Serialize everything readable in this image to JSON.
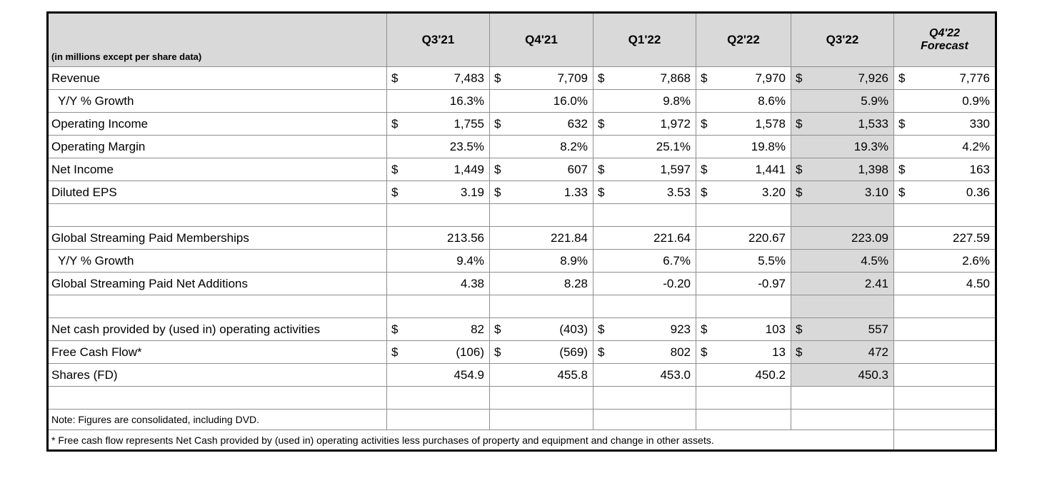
{
  "table": {
    "unit_label": "(in millions except per share data)",
    "currency_symbol": "$",
    "highlight_column_index": 4,
    "column_headers": [
      {
        "label": "Q3'21"
      },
      {
        "label": "Q4'21"
      },
      {
        "label": "Q1'22"
      },
      {
        "label": "Q2'22"
      },
      {
        "label": "Q3'22",
        "highlighted": true
      },
      {
        "label": "Q4'22",
        "sublabel": "Forecast",
        "italic": true
      }
    ],
    "rows": [
      {
        "kind": "currency",
        "label": "Revenue",
        "values": [
          "7,483",
          "7,709",
          "7,868",
          "7,970",
          "7,926",
          "7,776"
        ],
        "shaded": true
      },
      {
        "kind": "plain",
        "label": "Y/Y % Growth",
        "indent": true,
        "values": [
          "16.3%",
          "16.0%",
          "9.8%",
          "8.6%",
          "5.9%",
          "0.9%"
        ],
        "shaded": true
      },
      {
        "kind": "currency",
        "label": "Operating Income",
        "values": [
          "1,755",
          "632",
          "1,972",
          "1,578",
          "1,533",
          "330"
        ],
        "shaded": true
      },
      {
        "kind": "plain",
        "label": "Operating Margin",
        "values": [
          "23.5%",
          "8.2%",
          "25.1%",
          "19.8%",
          "19.3%",
          "4.2%"
        ],
        "shaded": true
      },
      {
        "kind": "currency",
        "label": "Net Income",
        "values": [
          "1,449",
          "607",
          "1,597",
          "1,441",
          "1,398",
          "163"
        ],
        "shaded": true
      },
      {
        "kind": "currency",
        "label": "Diluted EPS",
        "values": [
          "3.19",
          "1.33",
          "3.53",
          "3.20",
          "3.10",
          "0.36"
        ],
        "shaded": true
      },
      {
        "kind": "blank",
        "shaded": true
      },
      {
        "kind": "plain",
        "label": "Global Streaming Paid Memberships",
        "values": [
          "213.56",
          "221.84",
          "221.64",
          "220.67",
          "223.09",
          "227.59"
        ],
        "shaded": true
      },
      {
        "kind": "plain",
        "label": "Y/Y % Growth",
        "indent": true,
        "values": [
          "9.4%",
          "8.9%",
          "6.7%",
          "5.5%",
          "4.5%",
          "2.6%"
        ],
        "shaded": true
      },
      {
        "kind": "plain",
        "label": "Global Streaming Paid Net Additions",
        "values": [
          "4.38",
          "8.28",
          "-0.20",
          "-0.97",
          "2.41",
          "4.50"
        ],
        "shaded": true
      },
      {
        "kind": "blank",
        "shaded": true
      },
      {
        "kind": "currency",
        "label": "Net cash provided by (used in) operating activities",
        "values": [
          "82",
          "(403)",
          "923",
          "103",
          "557",
          ""
        ],
        "shaded": true
      },
      {
        "kind": "currency",
        "label": "Free Cash Flow*",
        "values": [
          "(106)",
          "(569)",
          "802",
          "13",
          "472",
          ""
        ],
        "shaded": true
      },
      {
        "kind": "plain",
        "label": "Shares (FD)",
        "values": [
          "454.9",
          "455.8",
          "453.0",
          "450.2",
          "450.3",
          ""
        ],
        "shaded": true
      },
      {
        "kind": "blank",
        "shaded": false
      },
      {
        "kind": "note",
        "label": "Note: Figures are consolidated, including DVD.",
        "shaded": false
      },
      {
        "kind": "footnote",
        "label": "* Free cash flow represents Net Cash provided by (used in) operating activities less purchases of property and equipment and change in other assets.",
        "shaded": false
      }
    ],
    "colors": {
      "header_bg": "#d9d9d9",
      "highlight_bg": "#d9d9d9",
      "gridline": "#8e8e8e",
      "outer_border": "#000000",
      "text": "#000000",
      "page_bg": "#ffffff"
    }
  }
}
